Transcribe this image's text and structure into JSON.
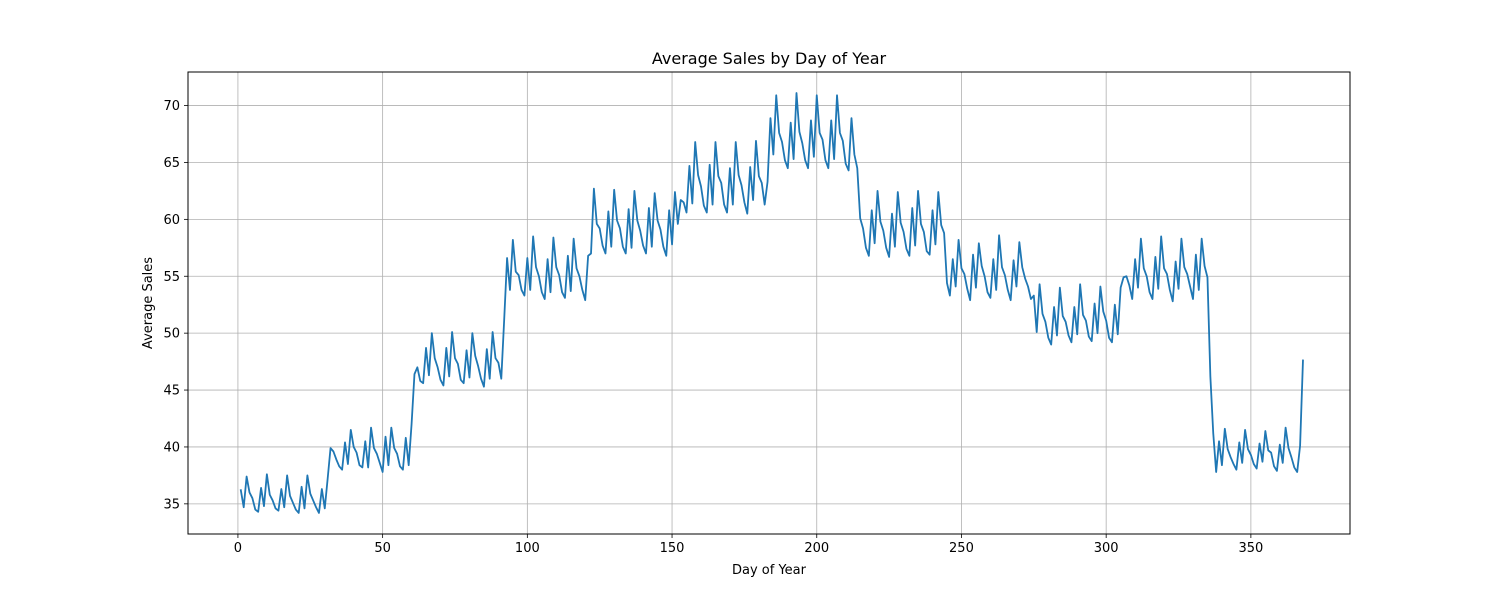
{
  "chart_data": {
    "type": "line",
    "title": "Average Sales by Day of Year",
    "xlabel": "Day of Year",
    "ylabel": "Average Sales",
    "xlim": [
      -17.25,
      384.25
    ],
    "ylim": [
      32.35,
      72.95
    ],
    "xticks": [
      0,
      50,
      100,
      150,
      200,
      250,
      300,
      350
    ],
    "yticks": [
      35,
      40,
      45,
      50,
      55,
      60,
      65,
      70
    ],
    "grid": true,
    "series_color": "#1f77b4",
    "series": [
      {
        "values": [
          36.2,
          34.7,
          37.4,
          36.0,
          35.5,
          34.5,
          34.3,
          36.4,
          34.8,
          37.6,
          35.8,
          35.3,
          34.6,
          34.4,
          36.3,
          34.7,
          37.5,
          35.7,
          35.1,
          34.5,
          34.2,
          36.5,
          34.6,
          37.5,
          35.9,
          35.3,
          34.7,
          34.2,
          36.3,
          34.6,
          37.2,
          39.9,
          39.6,
          38.9,
          38.3,
          38.0,
          40.4,
          38.5,
          41.5,
          40.0,
          39.5,
          38.4,
          38.2,
          40.5,
          38.2,
          41.7,
          39.9,
          39.4,
          38.6,
          37.8,
          40.9,
          38.4,
          41.7,
          39.9,
          39.4,
          38.3,
          38.0,
          40.8,
          38.4,
          42.0,
          46.4,
          47.0,
          45.8,
          45.6,
          48.7,
          46.3,
          50.0,
          47.8,
          47.0,
          45.9,
          45.4,
          48.7,
          46.2,
          50.1,
          47.8,
          47.3,
          45.9,
          45.6,
          48.5,
          46.1,
          50.0,
          48.0,
          47.1,
          46.0,
          45.3,
          48.6,
          46.0,
          50.1,
          47.8,
          47.4,
          46.0,
          51.2,
          56.6,
          53.8,
          58.2,
          55.4,
          55.1,
          53.8,
          53.3,
          56.6,
          53.8,
          58.5,
          55.8,
          55.0,
          53.6,
          53.0,
          56.5,
          53.6,
          58.4,
          55.8,
          55.1,
          53.6,
          53.1,
          56.8,
          53.7,
          58.3,
          55.7,
          55.0,
          53.8,
          52.9,
          56.8,
          57.0,
          62.7,
          59.6,
          59.2,
          57.7,
          57.0,
          60.7,
          57.6,
          62.6,
          59.9,
          59.2,
          57.6,
          57.0,
          60.9,
          57.5,
          62.5,
          59.9,
          59.0,
          57.7,
          57.0,
          61.0,
          57.6,
          62.3,
          59.9,
          59.1,
          57.6,
          56.8,
          60.8,
          57.8,
          62.4,
          59.6,
          61.7,
          61.5,
          60.6,
          64.7,
          61.4,
          66.8,
          63.9,
          62.9,
          61.2,
          60.6,
          64.8,
          61.3,
          66.8,
          63.8,
          63.2,
          61.3,
          60.6,
          64.5,
          61.3,
          66.8,
          63.9,
          63.0,
          61.5,
          60.5,
          64.6,
          61.7,
          66.9,
          63.8,
          63.2,
          61.3,
          63.3,
          68.9,
          65.7,
          70.9,
          67.6,
          66.8,
          65.2,
          64.5,
          68.5,
          65.3,
          71.1,
          67.7,
          66.7,
          65.2,
          64.5,
          68.7,
          65.5,
          70.9,
          67.6,
          67.0,
          65.2,
          64.5,
          68.7,
          65.3,
          70.9,
          67.6,
          66.9,
          64.9,
          64.3,
          68.9,
          65.7,
          64.5,
          60.1,
          59.2,
          57.5,
          56.8,
          60.8,
          57.9,
          62.5,
          59.8,
          59.0,
          57.5,
          56.7,
          60.5,
          57.6,
          62.4,
          59.7,
          58.9,
          57.4,
          56.8,
          61.0,
          57.7,
          62.5,
          59.6,
          58.9,
          57.2,
          56.9,
          60.8,
          57.8,
          62.4,
          59.5,
          58.8,
          54.4,
          53.3,
          56.5,
          54.1,
          58.2,
          55.7,
          55.2,
          53.9,
          52.9,
          56.9,
          54.0,
          57.9,
          55.9,
          55.0,
          53.6,
          53.1,
          56.5,
          53.8,
          58.6,
          55.8,
          55.1,
          53.8,
          52.9,
          56.4,
          54.1,
          58.0,
          55.8,
          54.8,
          54.1,
          53.0,
          53.3,
          50.1,
          54.3,
          51.7,
          51.0,
          49.6,
          49.0,
          52.3,
          49.8,
          54.0,
          51.5,
          51.0,
          49.8,
          49.2,
          52.3,
          49.9,
          54.3,
          51.6,
          51.1,
          49.7,
          49.3,
          52.6,
          50.0,
          54.1,
          51.9,
          51.1,
          49.6,
          49.2,
          52.5,
          49.9,
          54.0,
          54.9,
          55.0,
          54.2,
          53.0,
          56.5,
          54.0,
          58.3,
          55.7,
          55.0,
          53.6,
          53.0,
          56.7,
          53.9,
          58.5,
          55.7,
          55.2,
          53.8,
          52.8,
          56.3,
          53.9,
          58.3,
          55.8,
          55.2,
          54.1,
          53.0,
          56.9,
          53.8,
          58.3,
          55.9,
          54.9,
          46.2,
          41.2,
          37.8,
          40.5,
          38.4,
          41.6,
          39.8,
          39.1,
          38.5,
          38.0,
          40.4,
          38.6,
          41.5,
          39.8,
          39.3,
          38.5,
          38.1,
          40.3,
          38.7,
          41.4,
          39.7,
          39.5,
          38.3,
          37.9,
          40.2,
          38.6,
          41.7,
          39.9,
          39.1,
          38.2,
          37.8,
          40.1,
          47.6
        ]
      }
    ]
  }
}
